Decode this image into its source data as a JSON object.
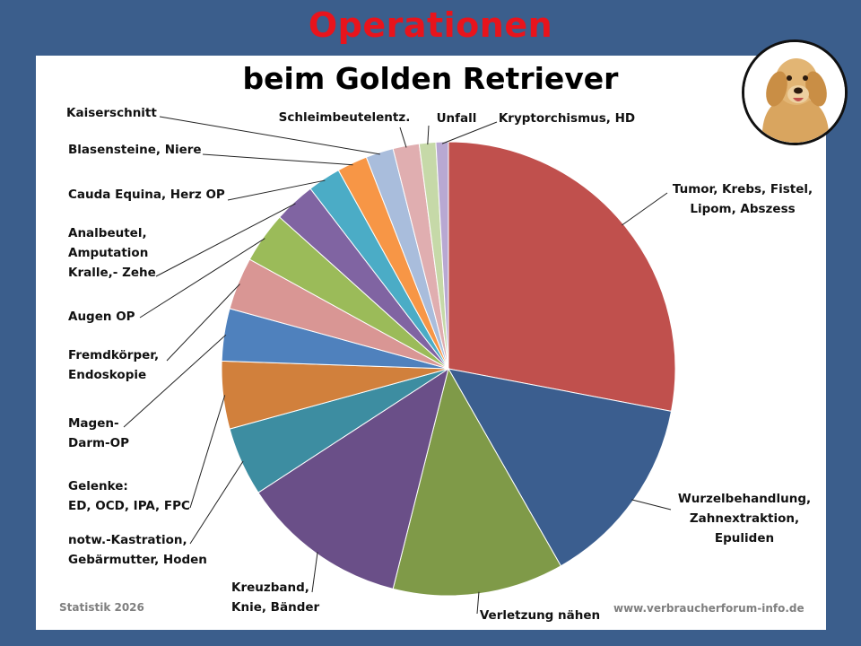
{
  "header": {
    "title": "Operationen",
    "subtitle": "beim Golden Retriever"
  },
  "footer": {
    "left": "Statistik 2026",
    "right": "www.verbraucherforum-info.de"
  },
  "image": {
    "icon": "golden-retriever-photo"
  },
  "chart_data": {
    "type": "pie",
    "title": "Operationen beim Golden Retriever",
    "start_angle_deg": 0,
    "direction": "clockwise",
    "slices": [
      {
        "label": "Tumor, Krebs, Fistel, Lipom, Abszess",
        "lines": [
          "Tumor, Krebs, Fistel,",
          "Lipom, Abszess"
        ],
        "value": 28.5,
        "color": "#c0504d"
      },
      {
        "label": "Wurzelbehandlung, Zahnextraktion, Epuliden",
        "lines": [
          "Wurzelbehandlung,",
          "Zahnextraktion,",
          "Epuliden"
        ],
        "value": 14.0,
        "color": "#3b5e8f"
      },
      {
        "label": "Verletzung nähen",
        "lines": [
          "Verletzung nähen"
        ],
        "value": 12.4,
        "color": "#7f9a48"
      },
      {
        "label": "Kreuzband, Knie, Bänder",
        "lines": [
          "Kreuzband,",
          "Knie, Bänder"
        ],
        "value": 12.1,
        "color": "#6a4f88"
      },
      {
        "label": "notw.-Kastration, Gebärmutter, Hoden",
        "lines": [
          "notw.-Kastration,",
          "Gebärmutter, Hoden"
        ],
        "value": 5.0,
        "color": "#3d8da1"
      },
      {
        "label": "Gelenke: ED, OCD, IPA, FPC",
        "lines": [
          "Gelenke:",
          "ED, OCD, IPA, FPC"
        ],
        "value": 4.9,
        "color": "#d1803c"
      },
      {
        "label": "Magen-Darm-OP",
        "lines": [
          "Magen-",
          "Darm-OP"
        ],
        "value": 3.8,
        "color": "#4f81bd"
      },
      {
        "label": "Fremdkörper, Endoskopie",
        "lines": [
          "Fremdkörper,",
          "Endoskopie"
        ],
        "value": 3.8,
        "color": "#d99694"
      },
      {
        "label": "Augen OP",
        "lines": [
          "Augen OP"
        ],
        "value": 3.7,
        "color": "#9bbb59"
      },
      {
        "label": "Analbeutel, Amputation Kralle,- Zehe",
        "lines": [
          "Analbeutel,",
          "Amputation",
          "Kralle,- Zehe"
        ],
        "value": 3.0,
        "color": "#8064a2"
      },
      {
        "label": "Cauda Equina, Herz OP",
        "lines": [
          "Cauda Equina, Herz OP"
        ],
        "value": 2.4,
        "color": "#4bacc6"
      },
      {
        "label": "Blasensteine, Niere",
        "lines": [
          "Blasensteine, Niere"
        ],
        "value": 2.2,
        "color": "#f79646"
      },
      {
        "label": "Kaiserschnitt",
        "lines": [
          "Kaiserschnitt"
        ],
        "value": 2.0,
        "color": "#a9bddc"
      },
      {
        "label": "Schleimbeutelentz.",
        "lines": [
          "Schleimbeutelentz."
        ],
        "value": 1.9,
        "color": "#e0aeb0"
      },
      {
        "label": "Unfall",
        "lines": [
          "Unfall"
        ],
        "value": 1.2,
        "color": "#c6d9a8"
      },
      {
        "label": "Kryptorchismus, HD",
        "lines": [
          "Kryptorchismus, HD"
        ],
        "value": 0.9,
        "color": "#b8a8d2"
      }
    ]
  }
}
